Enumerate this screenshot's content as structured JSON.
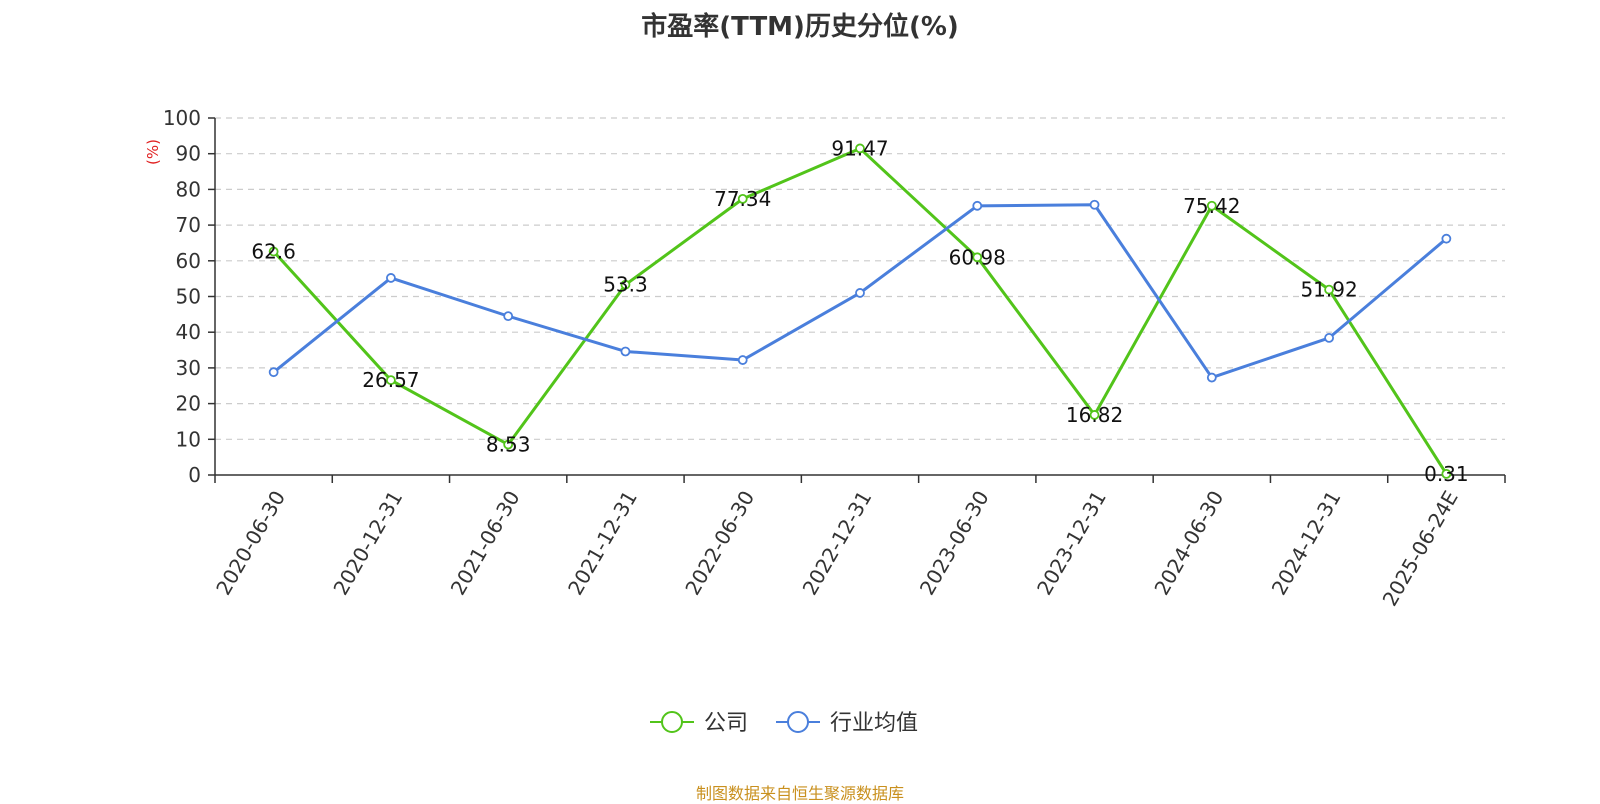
{
  "chart_data": {
    "type": "line",
    "title": "市盈率(TTM)历史分位(%)",
    "ylabel": "(%)",
    "xlabel": "",
    "ylim": [
      0,
      100
    ],
    "yticks": [
      0,
      10,
      20,
      30,
      40,
      50,
      60,
      70,
      80,
      90,
      100
    ],
    "grid": true,
    "legend_position": "bottom-center",
    "categories": [
      "2020-06-30",
      "2020-12-31",
      "2021-06-30",
      "2021-12-31",
      "2022-06-30",
      "2022-12-31",
      "2023-06-30",
      "2023-12-31",
      "2024-06-30",
      "2024-12-31",
      "2025-06-24E"
    ],
    "series": [
      {
        "name": "公司",
        "color": "#52c41a",
        "show_labels": true,
        "values": [
          62.6,
          26.57,
          8.53,
          53.3,
          77.34,
          91.47,
          60.98,
          16.82,
          75.42,
          51.92,
          0.31
        ]
      },
      {
        "name": "行业均值",
        "color": "#4a7fdc",
        "show_labels": false,
        "values": [
          28.8,
          55.2,
          44.5,
          34.6,
          32.2,
          51.0,
          75.4,
          75.7,
          27.3,
          38.4,
          66.2
        ]
      }
    ],
    "ylabel_color": "#e02020"
  },
  "source": "制图数据来自恒生聚源数据库"
}
